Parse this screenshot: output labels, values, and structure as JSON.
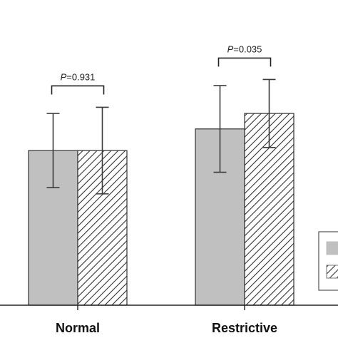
{
  "chart_data": {
    "type": "bar",
    "categories": [
      "Normal",
      "Restrictive"
    ],
    "series": [
      {
        "key": "solid",
        "fill": "solid",
        "values": [
          5.0,
          5.7
        ],
        "errors": [
          1.2,
          1.4
        ]
      },
      {
        "key": "hatched",
        "fill": "hatched",
        "values": [
          5.0,
          6.2
        ],
        "errors": [
          1.4,
          1.1
        ]
      }
    ],
    "comparisons": [
      {
        "category": "Normal",
        "p_italic": "P",
        "p_rest": "=0.931"
      },
      {
        "category": "Restrictive",
        "p_italic": "P",
        "p_rest": "=0.035"
      }
    ],
    "ylim": [
      0,
      9.5
    ],
    "axis_visible": false,
    "grid": false,
    "legend": {
      "placement": "right",
      "entries": [
        "solid",
        "hatched"
      ]
    }
  },
  "colors": {
    "solid_bar": "#c0c0c0",
    "bar_stroke": "#333333",
    "hatch": "#333333",
    "error_bar": "#3a3a3a",
    "axis": "#222222",
    "text": "#111111"
  }
}
